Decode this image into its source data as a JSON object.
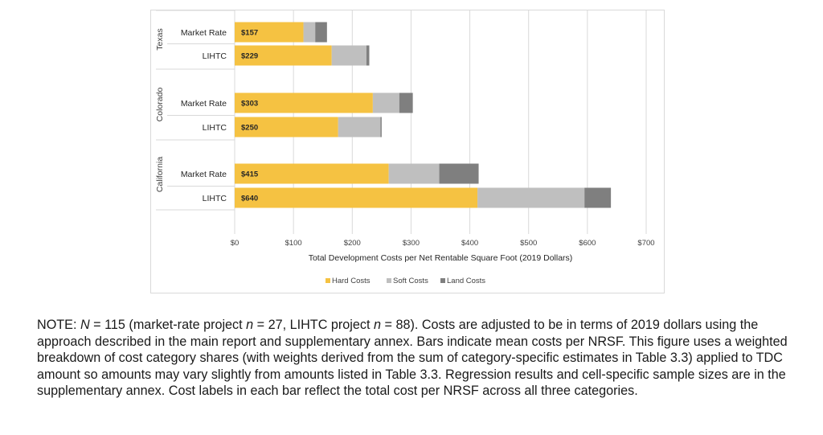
{
  "chart_data": {
    "type": "bar",
    "orientation": "horizontal",
    "stacked": true,
    "groups": [
      {
        "name": "Texas",
        "categories": [
          "Market Rate",
          "LIHTC"
        ]
      },
      {
        "name": "Colorado",
        "categories": [
          "Market Rate",
          "LIHTC"
        ]
      },
      {
        "name": "California",
        "categories": [
          "Market Rate",
          "LIHTC"
        ]
      }
    ],
    "series": [
      {
        "name": "Hard Costs",
        "color": "#f5c242",
        "values": [
          117,
          165,
          235,
          176,
          262,
          413
        ]
      },
      {
        "name": "Soft Costs",
        "color": "#bfbfbf",
        "values": [
          20,
          59,
          45,
          72,
          86,
          182
        ]
      },
      {
        "name": "Land Costs",
        "color": "#7f7f7f",
        "values": [
          20,
          5,
          23,
          2,
          67,
          45
        ]
      }
    ],
    "totals": [
      "$157",
      "$229",
      "$303",
      "$250",
      "$415",
      "$640"
    ],
    "xlabel": "Total Development Costs per Net Rentable Square Foot (2019 Dollars)",
    "xlim": [
      0,
      700
    ],
    "xticks": [
      "$0",
      "$100",
      "$200",
      "$300",
      "$400",
      "$500",
      "$600",
      "$700"
    ],
    "gridlines": true,
    "legend_position": "bottom"
  },
  "note": {
    "prefix": "NOTE: ",
    "n_symbol": "N",
    "n_text": " = 115 (market-rate project ",
    "n2_symbol": "n",
    "n2_text": " = 27, LIHTC project ",
    "n3_symbol": "n",
    "rest": " = 88). Costs are adjusted to be in terms of 2019 dollars using the approach described in the main report and supplementary annex. Bars indicate mean costs per NRSF. This figure uses a weighted breakdown of cost category shares (with weights derived from the sum of category-specific estimates in Table 3.3) applied to TDC amount so amounts may vary slightly from amounts listed in Table 3.3. Regression results and cell-specific sample sizes are in the supplementary annex. Cost labels in each bar reflect the total cost per NRSF across all three categories."
  }
}
